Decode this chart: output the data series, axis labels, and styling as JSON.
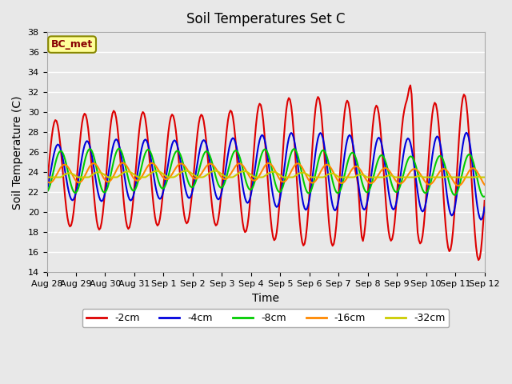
{
  "title": "Soil Temperatures Set C",
  "xlabel": "Time",
  "ylabel": "Soil Temperature (C)",
  "annotation": "BC_met",
  "ylim": [
    14,
    38
  ],
  "yticks": [
    14,
    16,
    18,
    20,
    22,
    24,
    26,
    28,
    30,
    32,
    34,
    36,
    38
  ],
  "x_labels": [
    "Aug 28",
    "Aug 29",
    "Aug 30",
    "Aug 31",
    "Sep 1",
    "Sep 2",
    "Sep 3",
    "Sep 4",
    "Sep 5",
    "Sep 6",
    "Sep 7",
    "Sep 8",
    "Sep 9",
    "Sep 10",
    "Sep 11",
    "Sep 12"
  ],
  "series": {
    "-2cm": {
      "color": "#dd0000",
      "lw": 1.5
    },
    "-4cm": {
      "color": "#0000dd",
      "lw": 1.5
    },
    "-8cm": {
      "color": "#00cc00",
      "lw": 1.5
    },
    "-16cm": {
      "color": "#ff8800",
      "lw": 1.5
    },
    "-32cm": {
      "color": "#cccc00",
      "lw": 1.5
    }
  },
  "background_color": "#e8e8e8",
  "plot_bg_color": "#e8e8e8",
  "grid_color": "#ffffff",
  "annotation_bg": "#ffff99",
  "annotation_border": "#888800",
  "annotation_text_color": "#880000"
}
